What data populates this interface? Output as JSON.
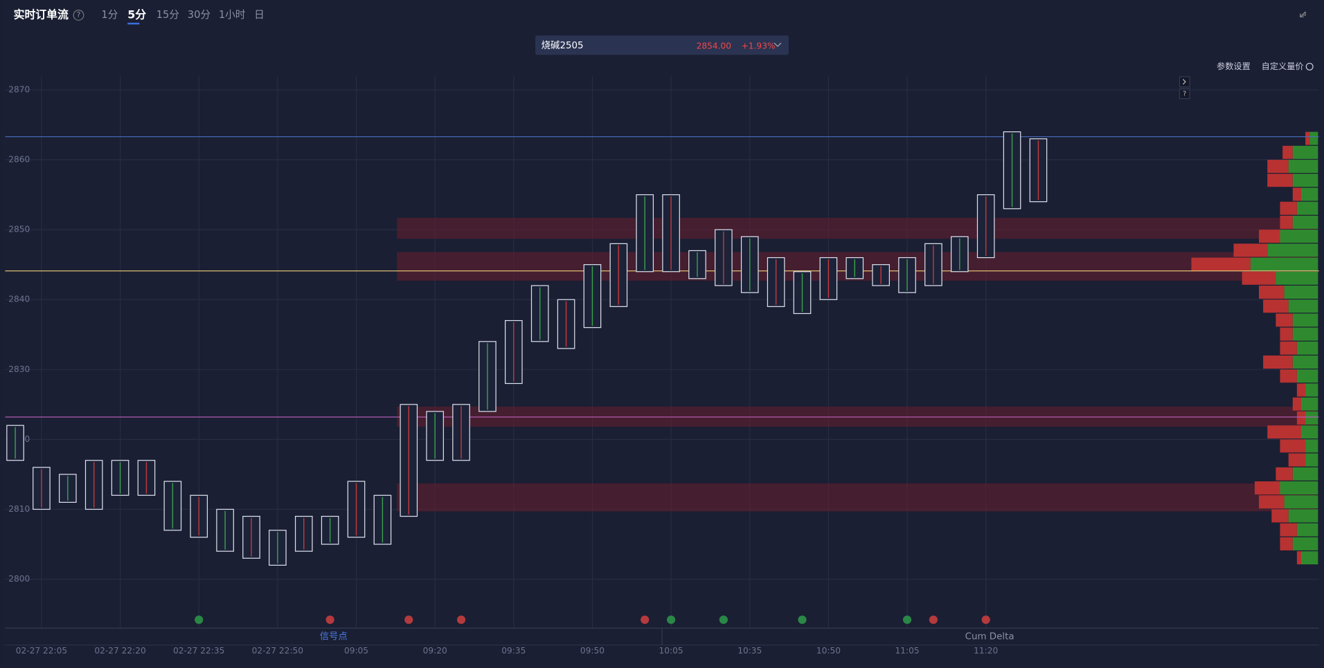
{
  "header": {
    "title": "实时订单流",
    "help": "?",
    "tabs": [
      "1分",
      "5分",
      "15分",
      "30分",
      "1小时",
      "日"
    ],
    "active_tab": 1,
    "instrument": "烧碱2505",
    "price": "2854.00",
    "change": "+1.93%",
    "buttons": [
      "参数设置",
      "自定义量价"
    ]
  },
  "chart_data": {
    "type": "footprint",
    "categories": [
      null,
      "02-27 22:05",
      null,
      null,
      "02-27 22:20",
      null,
      null,
      "02-27 22:35",
      null,
      null,
      "02-27 22:50",
      null,
      null,
      "09:05",
      null,
      null,
      "09:20",
      null,
      null,
      "09:35",
      null,
      null,
      "09:50",
      null,
      null,
      "10:05",
      null,
      null,
      "10:35",
      null,
      null,
      "10:50",
      null,
      null,
      "11:05",
      null,
      null,
      "11:20",
      null,
      null
    ],
    "high": [
      2822,
      2816,
      2815,
      2817,
      2817,
      2817,
      2814,
      2812,
      2810,
      2809,
      2807,
      2809,
      2809,
      2814,
      2812,
      2825,
      2824,
      2825,
      2834,
      2837,
      2842,
      2840,
      2845,
      2848,
      2855,
      2855,
      2847,
      2850,
      2849,
      2846,
      2844,
      2846,
      2846,
      2845,
      2846,
      2848,
      2849,
      2855,
      2864,
      2863
    ],
    "low": [
      2817,
      2810,
      2811,
      2810,
      2812,
      2812,
      2807,
      2806,
      2804,
      2803,
      2802,
      2804,
      2805,
      2806,
      2805,
      2809,
      2817,
      2817,
      2824,
      2828,
      2834,
      2833,
      2836,
      2839,
      2844,
      2844,
      2843,
      2842,
      2841,
      2839,
      2838,
      2840,
      2843,
      2842,
      2841,
      2842,
      2844,
      2846,
      2853,
      2854
    ],
    "ylim": [
      2793,
      2872
    ],
    "yticks": [
      2800,
      2810,
      2820,
      2830,
      2840,
      2850,
      2860,
      2870
    ],
    "grid": true,
    "hlines": [
      {
        "value": 2863.3,
        "color": "#4a6fc0"
      },
      {
        "value": 2844.1,
        "color": "#e0c070"
      },
      {
        "value": 2823.2,
        "color": "#c060c0"
      }
    ],
    "zones": [
      {
        "from": 2848.7,
        "to": 2851.7
      },
      {
        "from": 2842.7,
        "to": 2846.8
      },
      {
        "from": 2821.8,
        "to": 2824.7
      },
      {
        "from": 2809.7,
        "to": 2813.7
      }
    ],
    "profile": [
      {
        "price": 2863,
        "buy": 10,
        "sell": 5
      },
      {
        "price": 2861,
        "buy": 30,
        "sell": 12
      },
      {
        "price": 2859,
        "buy": 35,
        "sell": 25
      },
      {
        "price": 2857,
        "buy": 30,
        "sell": 30
      },
      {
        "price": 2855,
        "buy": 20,
        "sell": 10
      },
      {
        "price": 2853,
        "buy": 25,
        "sell": 20
      },
      {
        "price": 2851,
        "buy": 30,
        "sell": 15
      },
      {
        "price": 2849,
        "buy": 45,
        "sell": 25
      },
      {
        "price": 2847,
        "buy": 60,
        "sell": 40
      },
      {
        "price": 2845,
        "buy": 80,
        "sell": 70
      },
      {
        "price": 2843,
        "buy": 50,
        "sell": 40
      },
      {
        "price": 2841,
        "buy": 40,
        "sell": 30
      },
      {
        "price": 2839,
        "buy": 35,
        "sell": 30
      },
      {
        "price": 2837,
        "buy": 30,
        "sell": 20
      },
      {
        "price": 2835,
        "buy": 30,
        "sell": 15
      },
      {
        "price": 2833,
        "buy": 25,
        "sell": 20
      },
      {
        "price": 2831,
        "buy": 30,
        "sell": 35
      },
      {
        "price": 2829,
        "buy": 25,
        "sell": 20
      },
      {
        "price": 2827,
        "buy": 15,
        "sell": 10
      },
      {
        "price": 2825,
        "buy": 20,
        "sell": 10
      },
      {
        "price": 2823,
        "buy": 15,
        "sell": 10
      },
      {
        "price": 2821,
        "buy": 20,
        "sell": 40
      },
      {
        "price": 2819,
        "buy": 15,
        "sell": 30
      },
      {
        "price": 2817,
        "buy": 15,
        "sell": 20
      },
      {
        "price": 2815,
        "buy": 30,
        "sell": 20
      },
      {
        "price": 2813,
        "buy": 45,
        "sell": 30
      },
      {
        "price": 2811,
        "buy": 40,
        "sell": 30
      },
      {
        "price": 2809,
        "buy": 35,
        "sell": 20
      },
      {
        "price": 2807,
        "buy": 25,
        "sell": 20
      },
      {
        "price": 2805,
        "buy": 30,
        "sell": 15
      },
      {
        "price": 2803,
        "buy": 20,
        "sell": 5
      }
    ],
    "buy_color": "#2f8a2f",
    "sell_color": "#b83232",
    "signals": [
      {
        "bar": 7,
        "color": "#2e9a4a"
      },
      {
        "bar": 12,
        "color": "#d04040"
      },
      {
        "bar": 15,
        "color": "#d04040"
      },
      {
        "bar": 17,
        "color": "#d04040"
      },
      {
        "bar": 24,
        "color": "#d04040"
      },
      {
        "bar": 25,
        "color": "#2e9a4a"
      },
      {
        "bar": 27,
        "color": "#2e9a4a"
      },
      {
        "bar": 30,
        "color": "#2e9a4a"
      },
      {
        "bar": 34,
        "color": "#2e9a4a"
      },
      {
        "bar": 35,
        "color": "#d04040"
      },
      {
        "bar": 37,
        "color": "#d04040"
      }
    ],
    "panels": [
      "信号点",
      "Cum Delta"
    ]
  }
}
